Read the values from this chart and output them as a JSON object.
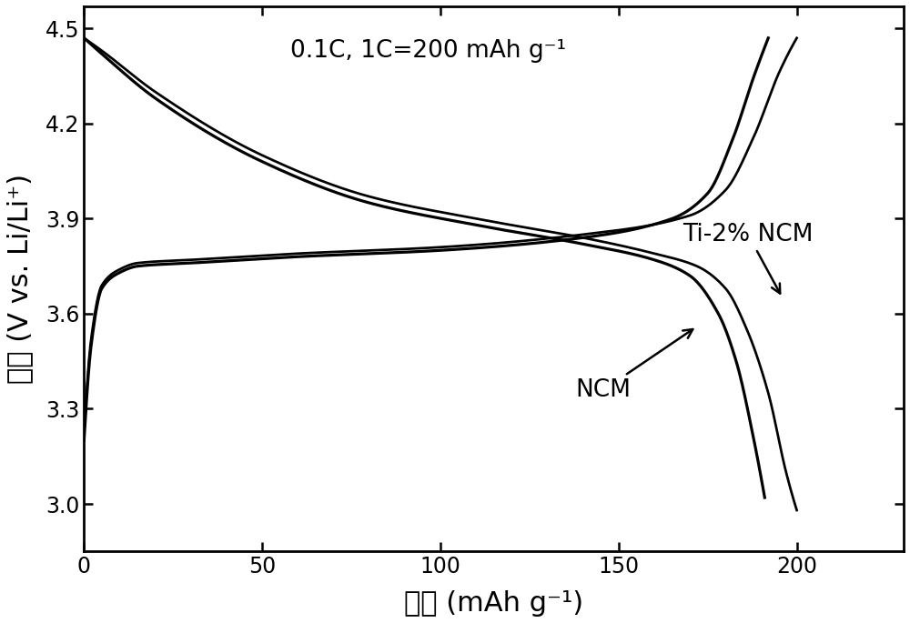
{
  "title_annotation": "0.1C, 1C=200 mAh g⁻¹",
  "xlabel": "容量 (mAh g⁻¹)",
  "ylabel": "电压 (V vs. Li/Li⁺)",
  "xlim": [
    0,
    230
  ],
  "ylim": [
    2.85,
    4.57
  ],
  "xticks": [
    0,
    50,
    100,
    150,
    200
  ],
  "yticks": [
    3.0,
    3.3,
    3.6,
    3.9,
    4.2,
    4.5
  ],
  "label_ncm": "NCM",
  "label_ti_ncm": "Ti-2% NCM",
  "bg_color": "#ffffff",
  "line_color": "#000000",
  "linewidth": 2.3,
  "ncm_discharge_x": [
    0,
    5,
    20,
    50,
    80,
    110,
    140,
    160,
    170,
    178,
    183,
    188,
    191
  ],
  "ncm_discharge_y": [
    4.47,
    4.42,
    4.28,
    4.08,
    3.95,
    3.88,
    3.82,
    3.77,
    3.72,
    3.6,
    3.45,
    3.2,
    3.02
  ],
  "ti_discharge_x": [
    0,
    5,
    20,
    50,
    80,
    110,
    140,
    160,
    172,
    180,
    186,
    192,
    197,
    200
  ],
  "ti_discharge_y": [
    4.47,
    4.43,
    4.3,
    4.1,
    3.97,
    3.9,
    3.84,
    3.79,
    3.75,
    3.68,
    3.55,
    3.35,
    3.1,
    2.98
  ],
  "ncm_charge_x": [
    0,
    2,
    5,
    10,
    15,
    30,
    60,
    100,
    140,
    165,
    175,
    182,
    188,
    192
  ],
  "ncm_charge_y": [
    3.2,
    3.5,
    3.68,
    3.73,
    3.75,
    3.76,
    3.78,
    3.8,
    3.84,
    3.9,
    3.98,
    4.15,
    4.35,
    4.47
  ],
  "ti_charge_x": [
    0,
    2,
    5,
    10,
    15,
    30,
    60,
    100,
    140,
    170,
    180,
    188,
    195,
    200
  ],
  "ti_charge_y": [
    3.22,
    3.52,
    3.69,
    3.74,
    3.76,
    3.77,
    3.79,
    3.81,
    3.85,
    3.91,
    3.99,
    4.16,
    4.36,
    4.47
  ]
}
